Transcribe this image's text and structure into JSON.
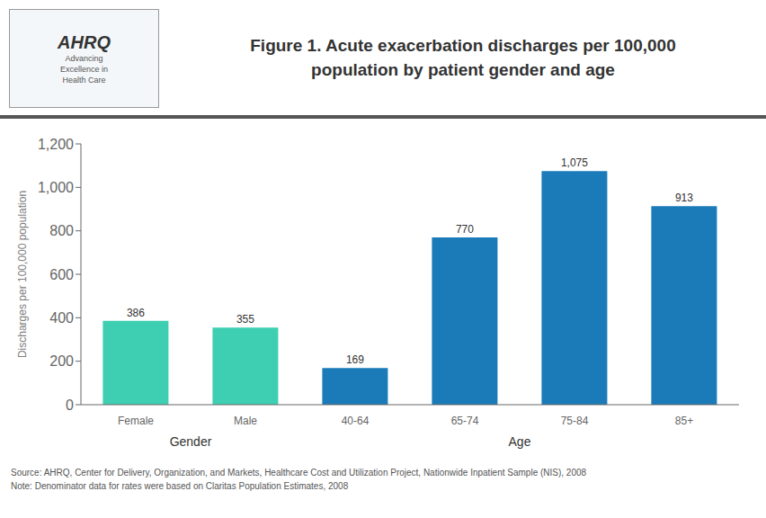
{
  "chart_data": {
    "type": "bar",
    "title": "Figure 1. Acute exacerbation discharges per 100,000\npopulation by patient gender and age",
    "categories": [
      "Female",
      "Male",
      "40-64",
      "65-74",
      "75-84",
      "85+"
    ],
    "groups": [
      "Gender",
      "Gender",
      "Age",
      "Age",
      "Age",
      "Age"
    ],
    "values": [
      386,
      355,
      169,
      770,
      1075,
      913
    ],
    "value_labels": [
      "386",
      "355",
      "169",
      "770",
      "1,075",
      "913"
    ],
    "data_labels": true,
    "colors": [
      "#3ECFB2",
      "#3ECFB2",
      "#1A7BB8",
      "#1A7BB8",
      "#1A7BB8",
      "#1A7BB8"
    ],
    "ylabel": "Discharges per 100,000 population",
    "ylim": [
      0,
      1200
    ],
    "yticks": [
      0,
      200,
      400,
      600,
      800,
      {
        "value": 1000,
        "label": "1,000"
      },
      {
        "value": 1200,
        "label": "1,200"
      }
    ],
    "grid": false,
    "annotations": [
      "AHRQ",
      "Advancing\nExcellence in\nHealth Care",
      "Source: AHRQ, Center for Delivery, Organization, and Markets, Healthcare Cost and Utilization Project, Nationwide Inpatient Sample (NIS), 2008\nNote: Denominator data for rates were based on Claritas Population Estimates, 2008"
    ]
  }
}
